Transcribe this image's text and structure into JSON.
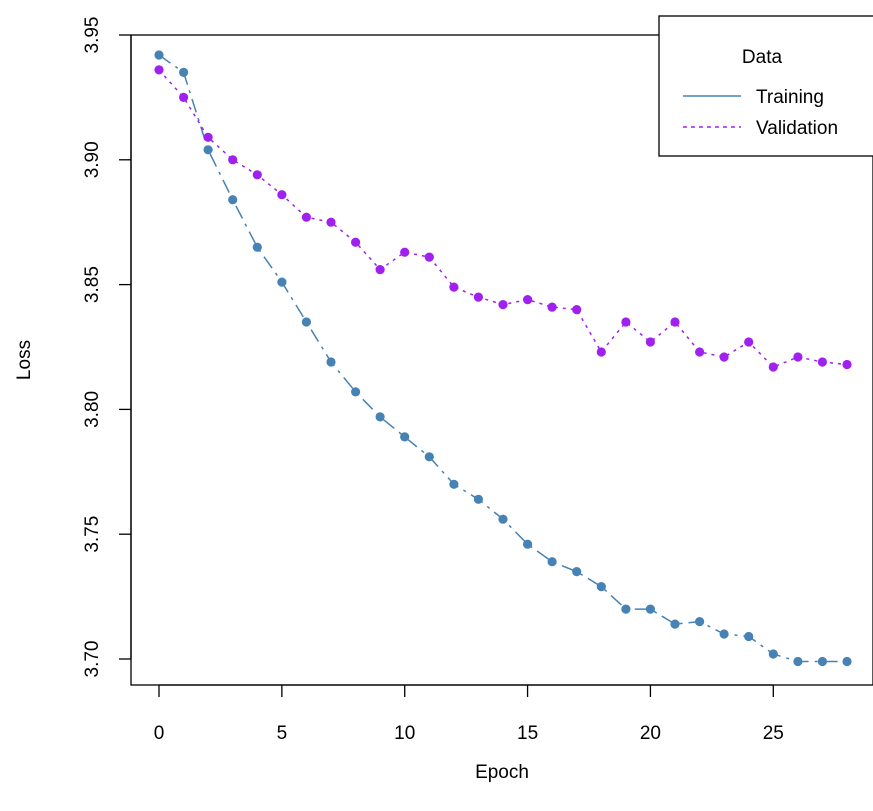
{
  "chart_data": {
    "type": "line",
    "xlabel": "Epoch",
    "ylabel": "Loss",
    "xlim": [
      0,
      28
    ],
    "ylim": [
      3.7,
      3.95
    ],
    "x_ticks": [
      0,
      5,
      10,
      15,
      20,
      25
    ],
    "x_tick_labels": [
      "0",
      "5",
      "10",
      "15",
      "20",
      "25"
    ],
    "y_ticks": [
      3.7,
      3.75,
      3.8,
      3.85,
      3.9,
      3.95
    ],
    "y_tick_labels": [
      "3.70",
      "3.75",
      "3.80",
      "3.85",
      "3.90",
      "3.95"
    ],
    "grid": false,
    "legend": {
      "title": "Data",
      "position": "top-right",
      "entries": [
        "Training",
        "Validation"
      ]
    },
    "x": [
      0,
      1,
      2,
      3,
      4,
      5,
      6,
      7,
      8,
      9,
      10,
      11,
      12,
      13,
      14,
      15,
      16,
      17,
      18,
      19,
      20,
      21,
      22,
      23,
      24,
      25,
      26,
      27,
      28
    ],
    "series": [
      {
        "name": "Training",
        "color": "#4682b4",
        "line_style": "dashdot",
        "values": [
          3.942,
          3.935,
          3.904,
          3.884,
          3.865,
          3.851,
          3.835,
          3.819,
          3.807,
          3.797,
          3.789,
          3.781,
          3.77,
          3.764,
          3.756,
          3.746,
          3.739,
          3.735,
          3.729,
          3.72,
          3.72,
          3.714,
          3.715,
          3.71,
          3.709,
          3.702,
          3.699,
          3.699,
          3.699
        ]
      },
      {
        "name": "Validation",
        "color": "#a020f0",
        "line_style": "dotted",
        "values": [
          3.936,
          3.925,
          3.909,
          3.9,
          3.894,
          3.886,
          3.877,
          3.875,
          3.867,
          3.856,
          3.863,
          3.861,
          3.849,
          3.845,
          3.842,
          3.844,
          3.841,
          3.84,
          3.823,
          3.835,
          3.827,
          3.835,
          3.823,
          3.821,
          3.827,
          3.817,
          3.821,
          3.819,
          3.818
        ]
      }
    ]
  }
}
